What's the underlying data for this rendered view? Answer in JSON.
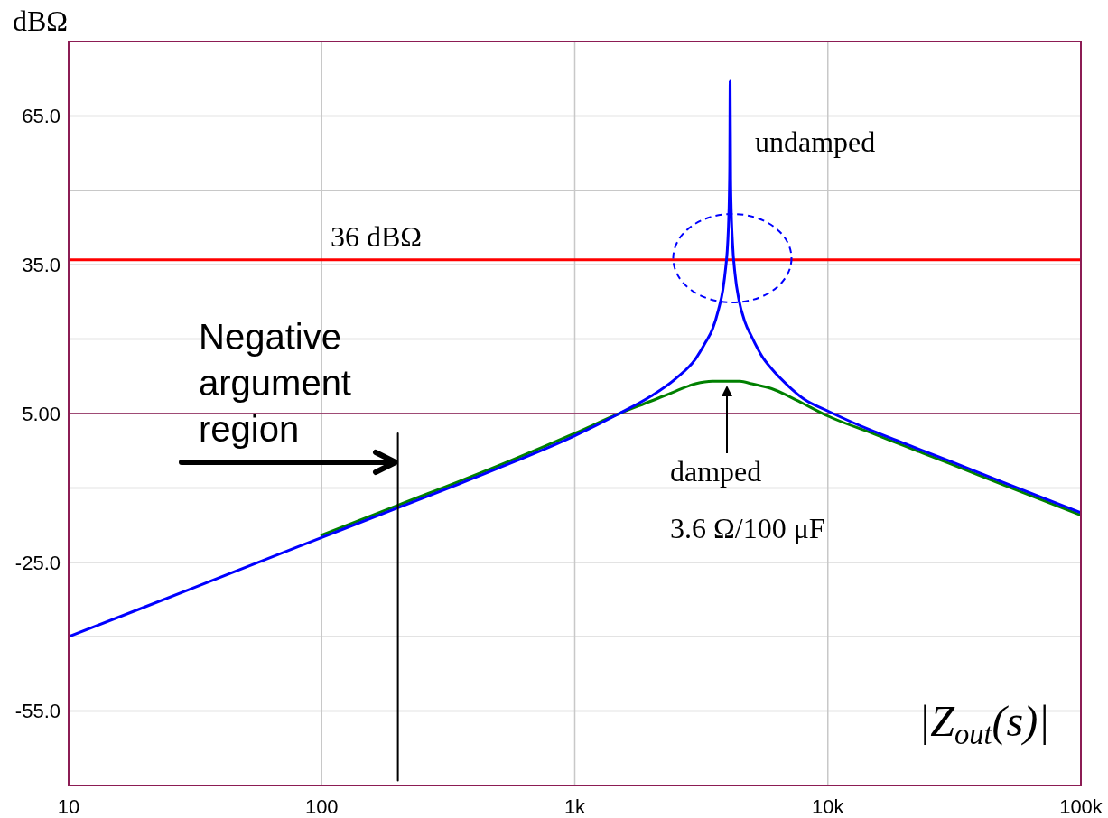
{
  "chart_data": {
    "type": "line",
    "ylabel": "dBΩ",
    "series": [
      {
        "name": "damped",
        "color": "#008000",
        "x": [
          100,
          200,
          500,
          1000,
          1500,
          2000,
          2500,
          3000,
          3500,
          4000,
          4500,
          5000,
          6000,
          7000,
          8000,
          10000,
          15000,
          20000,
          30000,
          50000,
          100000
        ],
        "values": [
          -19.5,
          -13.5,
          -5.5,
          1,
          5,
          7.5,
          9.5,
          11,
          11.5,
          11.5,
          11.5,
          11,
          10,
          8.5,
          7,
          4.5,
          1,
          -1.5,
          -5,
          -9.5,
          -15.5
        ]
      },
      {
        "name": "undamped",
        "color": "#0000ff",
        "x": [
          10,
          20,
          50,
          100,
          200,
          500,
          1000,
          1500,
          2000,
          2500,
          3000,
          3300,
          3500,
          3700,
          3850,
          3950,
          4000,
          4050,
          4080,
          4095,
          4110,
          4130,
          4150,
          4200,
          4300,
          4450,
          4700,
          5000,
          5500,
          6000,
          7000,
          8000,
          10000,
          15000,
          20000,
          30000,
          50000,
          100000
        ],
        "values": [
          -40,
          -34,
          -26,
          -20,
          -14,
          -6,
          0.5,
          5,
          8.5,
          12,
          16,
          19.5,
          22,
          26,
          30,
          34.5,
          37.5,
          43,
          49,
          55,
          72,
          52.5,
          46.5,
          39.5,
          33,
          28,
          23.5,
          20.5,
          16.5,
          14,
          10.5,
          8,
          5.5,
          1.5,
          -1,
          -4.5,
          -9,
          -15
        ]
      },
      {
        "color": "#000000",
        "x": [
          200,
          200
        ],
        "values": [
          1,
          -69
        ]
      }
    ],
    "log": "x",
    "xlim": [
      10,
      100000
    ],
    "xticks": [
      10,
      100,
      {
        "value": 1000,
        "label": "1k"
      },
      {
        "value": 10000,
        "label": "10k"
      },
      {
        "value": 100000,
        "label": "100k"
      }
    ],
    "ylim": [
      -70,
      80
    ],
    "yticks": [
      {
        "value": -55,
        "label": "-55.0"
      },
      {
        "value": -40,
        "label": null
      },
      {
        "value": -25,
        "label": "-25.0"
      },
      {
        "value": -10,
        "label": null
      },
      {
        "value": 5,
        "label": "5.00"
      },
      {
        "value": 20,
        "label": null
      },
      {
        "value": 35,
        "label": "35.0"
      },
      {
        "value": 50,
        "label": null
      },
      {
        "value": 65,
        "label": "65.0"
      }
    ],
    "grid": true,
    "marker": "none",
    "ref_lines": [
      {
        "axis": "y",
        "value": 36,
        "label": "36 dBΩ",
        "color": "#ff0000"
      },
      {
        "axis": "y",
        "value": 5,
        "color": "#8c1c54"
      }
    ],
    "annotations": [
      "3.6 Ω/100 μF",
      "Negative argument region",
      "|Z$_{out}$(s)|"
    ]
  }
}
